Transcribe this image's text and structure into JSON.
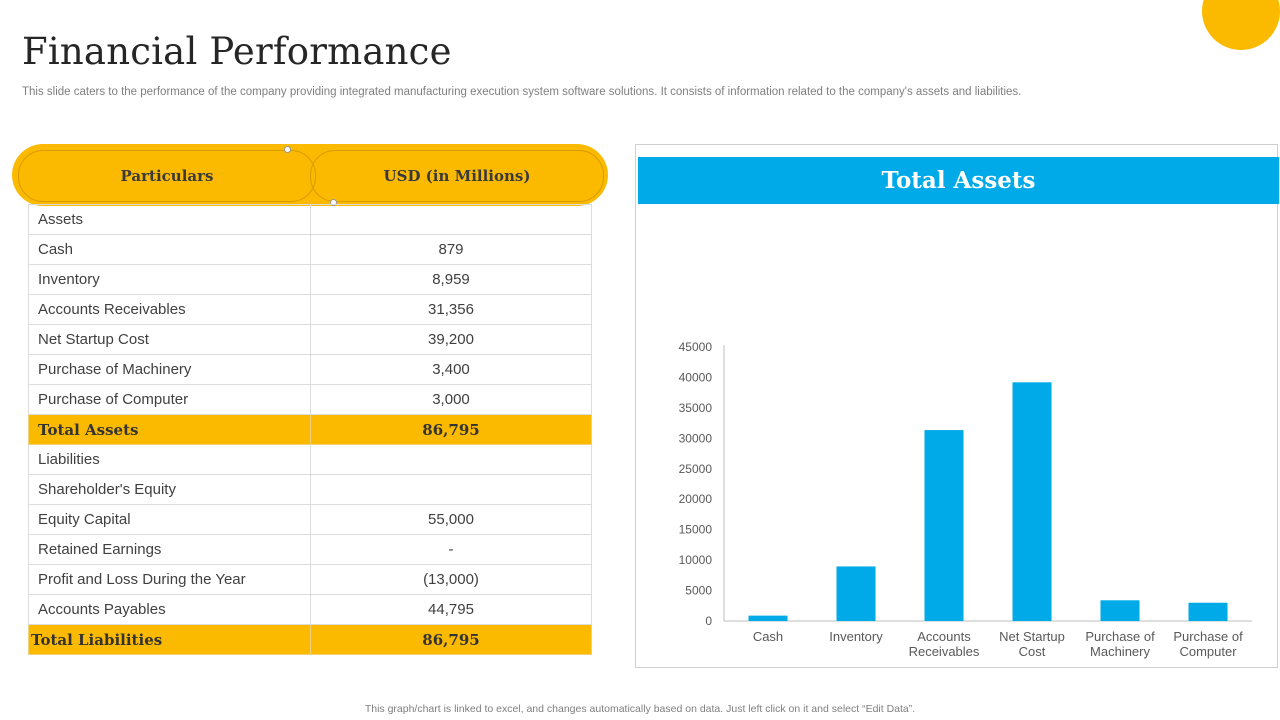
{
  "page": {
    "title": "Financial Performance",
    "subtitle": "This slide caters to the performance of the company providing integrated manufacturing execution system software solutions. It consists of information related to the company's assets and liabilities.",
    "footer": "This graph/chart is linked to excel, and changes automatically based on data. Just left click on it and select “Edit Data”."
  },
  "colors": {
    "accent_yellow": "#fbb900",
    "accent_blue": "#00a9e8"
  },
  "table": {
    "headers": [
      "Particulars",
      "USD (in Millions)"
    ],
    "rows": [
      {
        "label": "Assets",
        "value": ""
      },
      {
        "label": "Cash",
        "value": "879"
      },
      {
        "label": "Inventory",
        "value": "8,959"
      },
      {
        "label": "Accounts Receivables",
        "value": "31,356"
      },
      {
        "label": "Net Startup Cost",
        "value": "39,200"
      },
      {
        "label": "Purchase of Machinery",
        "value": "3,400"
      },
      {
        "label": "Purchase of Computer",
        "value": "3,000"
      },
      {
        "label": "Total Assets",
        "value": "86,795",
        "total": true
      },
      {
        "label": "Liabilities",
        "value": ""
      },
      {
        "label": "Shareholder's Equity",
        "value": ""
      },
      {
        "label": "Equity Capital",
        "value": "55,000"
      },
      {
        "label": "Retained Earnings",
        "value": "-"
      },
      {
        "label": "Profit and Loss During the Year",
        "value": "(13,000)"
      },
      {
        "label": "Accounts Payables",
        "value": "44,795"
      },
      {
        "label": "Total Liabilities",
        "value": "86,795",
        "total": true
      }
    ]
  },
  "chart_data": {
    "type": "bar",
    "title": "Total Assets",
    "categories": [
      [
        "Cash"
      ],
      [
        "Inventory"
      ],
      [
        "Accounts",
        "Receivables"
      ],
      [
        "Net Startup",
        "Cost"
      ],
      [
        "Purchase of",
        "Machinery"
      ],
      [
        "Purchase of",
        "Computer"
      ]
    ],
    "values": [
      879,
      8959,
      31356,
      39200,
      3400,
      3000
    ],
    "ylim": [
      0,
      45000
    ],
    "yticks": [
      0,
      5000,
      10000,
      15000,
      20000,
      25000,
      30000,
      35000,
      40000,
      45000
    ],
    "grid": false,
    "legend": "none",
    "xlabel": "",
    "ylabel": ""
  }
}
